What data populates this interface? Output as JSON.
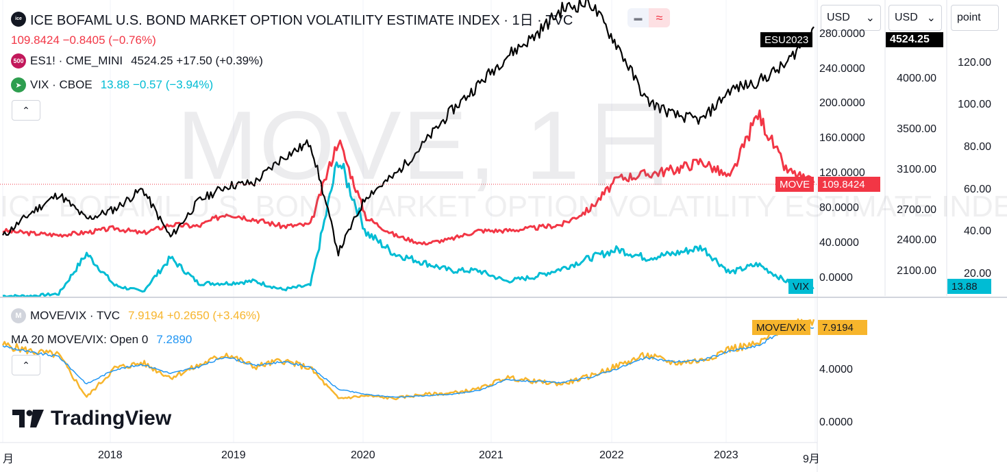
{
  "header": {
    "symbol_icon": "ice",
    "title": "ICE BOFAML U.S. BOND MARKET OPTION VOLATILITY ESTIMATE INDEX · 1日 · TVC",
    "price_line": "109.8424 −0.8405 (−0.76%)",
    "indicator_pill_minus": "▬",
    "indicator_pill_wave": "≈"
  },
  "legends": {
    "es": {
      "badge": "500",
      "name": "ES1! · CME_MINI",
      "values": "4524.25 +17.50 (+0.39%)"
    },
    "vix": {
      "name": "VIX · CBOE",
      "values": "13.88 −0.57 (−3.94%)"
    },
    "ratio": {
      "name": "MOVE/VIX · TVC",
      "values": "7.9194 +0.2650 (+3.46%)"
    },
    "ma": {
      "name": "MA 20 MOVE/VIX: Open 0",
      "value": "7.2890"
    }
  },
  "collapse_arrow": "⌃",
  "dropdowns": [
    {
      "label": "USD",
      "caret": "⌄"
    },
    {
      "label": "USD",
      "caret": "⌄"
    },
    {
      "label": "point",
      "caret": ""
    }
  ],
  "watermark": {
    "big": "MOVE, 1日",
    "small": "ICE BOFAML U.S. BOND MARKET OPTION VOLATILITY ESTIMATE INDEX"
  },
  "tags": {
    "esu": "ESU2023",
    "es_price": "4524.25",
    "move": "MOVE",
    "move_price": "109.8424",
    "vix": "VIX",
    "vix_price": "13.88",
    "ratio": "MOVE/VIX",
    "ratio_price": "7.9194"
  },
  "logo": "TradingView",
  "colors": {
    "move": "#f23645",
    "es": "#000000",
    "vix": "#00bcd4",
    "ratio": "#f7b52c",
    "ma": "#2196f3"
  },
  "chart_data": [
    {
      "type": "line",
      "title": "ICE BOFAML U.S. BOND MARKET OPTION VOLATILITY ESTIMATE INDEX · 1日 · TVC",
      "x": [
        "2017-09",
        "2017-12",
        "2018-01",
        "2018-02",
        "2018-06",
        "2018-09",
        "2018-12",
        "2019-03",
        "2019-06",
        "2019-09",
        "2019-12",
        "2020-02",
        "2020-03",
        "2020-04",
        "2020-06",
        "2020-09",
        "2020-12",
        "2021-03",
        "2021-06",
        "2021-09",
        "2021-12",
        "2022-01",
        "2022-03",
        "2022-06",
        "2022-09",
        "2022-10",
        "2022-12",
        "2023-03",
        "2023-05",
        "2023-08"
      ],
      "series": [
        {
          "name": "MOVE",
          "axis": "MOVE",
          "values": [
            55,
            52,
            50,
            53,
            58,
            52,
            62,
            60,
            75,
            68,
            60,
            62,
            160,
            70,
            50,
            40,
            45,
            55,
            55,
            58,
            62,
            80,
            115,
            120,
            125,
            135,
            115,
            190,
            125,
            109.8424
          ]
        },
        {
          "name": "ES1! · CME_MINI",
          "axis": "ES1!",
          "values": [
            2450,
            2680,
            2870,
            2620,
            2720,
            2920,
            2440,
            2800,
            2950,
            2980,
            3230,
            3380,
            2290,
            2850,
            3050,
            3350,
            3680,
            3950,
            4230,
            4430,
            4700,
            4770,
            4330,
            3800,
            3650,
            3600,
            3900,
            3980,
            4150,
            4524.25
          ]
        },
        {
          "name": "VIX · CBOE",
          "axis": "VIX",
          "values": [
            10,
            10,
            11,
            30,
            15,
            12,
            28,
            16,
            16,
            17,
            13,
            15,
            75,
            40,
            30,
            26,
            22,
            22,
            17,
            19,
            23,
            28,
            32,
            28,
            30,
            33,
            21,
            25,
            17,
            13.88
          ]
        }
      ],
      "axes": {
        "MOVE": {
          "ticks": [
            "280.0000",
            "240.0000",
            "200.0000",
            "160.0000",
            "120.0000",
            "80.0000",
            "40.0000",
            "0.0000"
          ],
          "ylim": [
            -20,
            320
          ]
        },
        "ES1!": {
          "ticks": [
            "4000.00",
            "3500.00",
            "3100.00",
            "2700.00",
            "2400.00",
            "2100.00"
          ],
          "ylim": [
            1860,
            4790
          ]
        },
        "VIX": {
          "ticks": [
            "120.00",
            "100.00",
            "80.00",
            "60.00",
            "40.00",
            "20.00"
          ],
          "ylim": [
            10,
            150
          ]
        }
      },
      "last_values": {
        "MOVE": 109.8424,
        "ES1!": 4524.25,
        "VIX": 13.88
      }
    },
    {
      "type": "line",
      "title": "MOVE/VIX · TVC",
      "x": [
        "2017-09",
        "2017-12",
        "2018-01",
        "2018-02",
        "2018-06",
        "2018-09",
        "2018-12",
        "2019-03",
        "2019-06",
        "2019-09",
        "2019-12",
        "2020-02",
        "2020-03",
        "2020-04",
        "2020-06",
        "2020-09",
        "2020-12",
        "2021-03",
        "2021-06",
        "2021-09",
        "2021-12",
        "2022-01",
        "2022-03",
        "2022-06",
        "2022-09",
        "2022-10",
        "2022-12",
        "2023-03",
        "2023-05",
        "2023-08"
      ],
      "series": [
        {
          "name": "MOVE/VIX · TVC",
          "values": [
            6.0,
            5.5,
            5.2,
            2.0,
            4.2,
            4.6,
            3.5,
            4.4,
            5.3,
            4.3,
            4.8,
            4.2,
            1.9,
            2.1,
            1.9,
            2.2,
            2.3,
            2.6,
            3.5,
            3.2,
            3.0,
            3.6,
            4.4,
            5.2,
            4.6,
            4.8,
            5.7,
            6.0,
            7.5,
            7.9194
          ]
        },
        {
          "name": "MA 20 MOVE/VIX: Open 0",
          "values": [
            5.9,
            5.4,
            5.1,
            3.0,
            4.1,
            4.5,
            3.8,
            4.3,
            5.1,
            4.4,
            4.7,
            4.3,
            2.6,
            2.2,
            2.0,
            2.1,
            2.2,
            2.5,
            3.3,
            3.2,
            3.1,
            3.5,
            4.2,
            5.0,
            4.7,
            4.8,
            5.5,
            5.9,
            7.2,
            7.289
          ]
        }
      ],
      "axes": {
        "ticks": [
          "4.0000",
          "0.0000"
        ],
        "ylim": [
          -1.46,
          9.5
        ]
      },
      "last_values": {
        "MOVE/VIX": 7.9194,
        "MA": 7.289
      }
    }
  ],
  "date_axis": [
    "月",
    "2018",
    "2019",
    "2020",
    "2021",
    "2022",
    "2023",
    "9月"
  ]
}
